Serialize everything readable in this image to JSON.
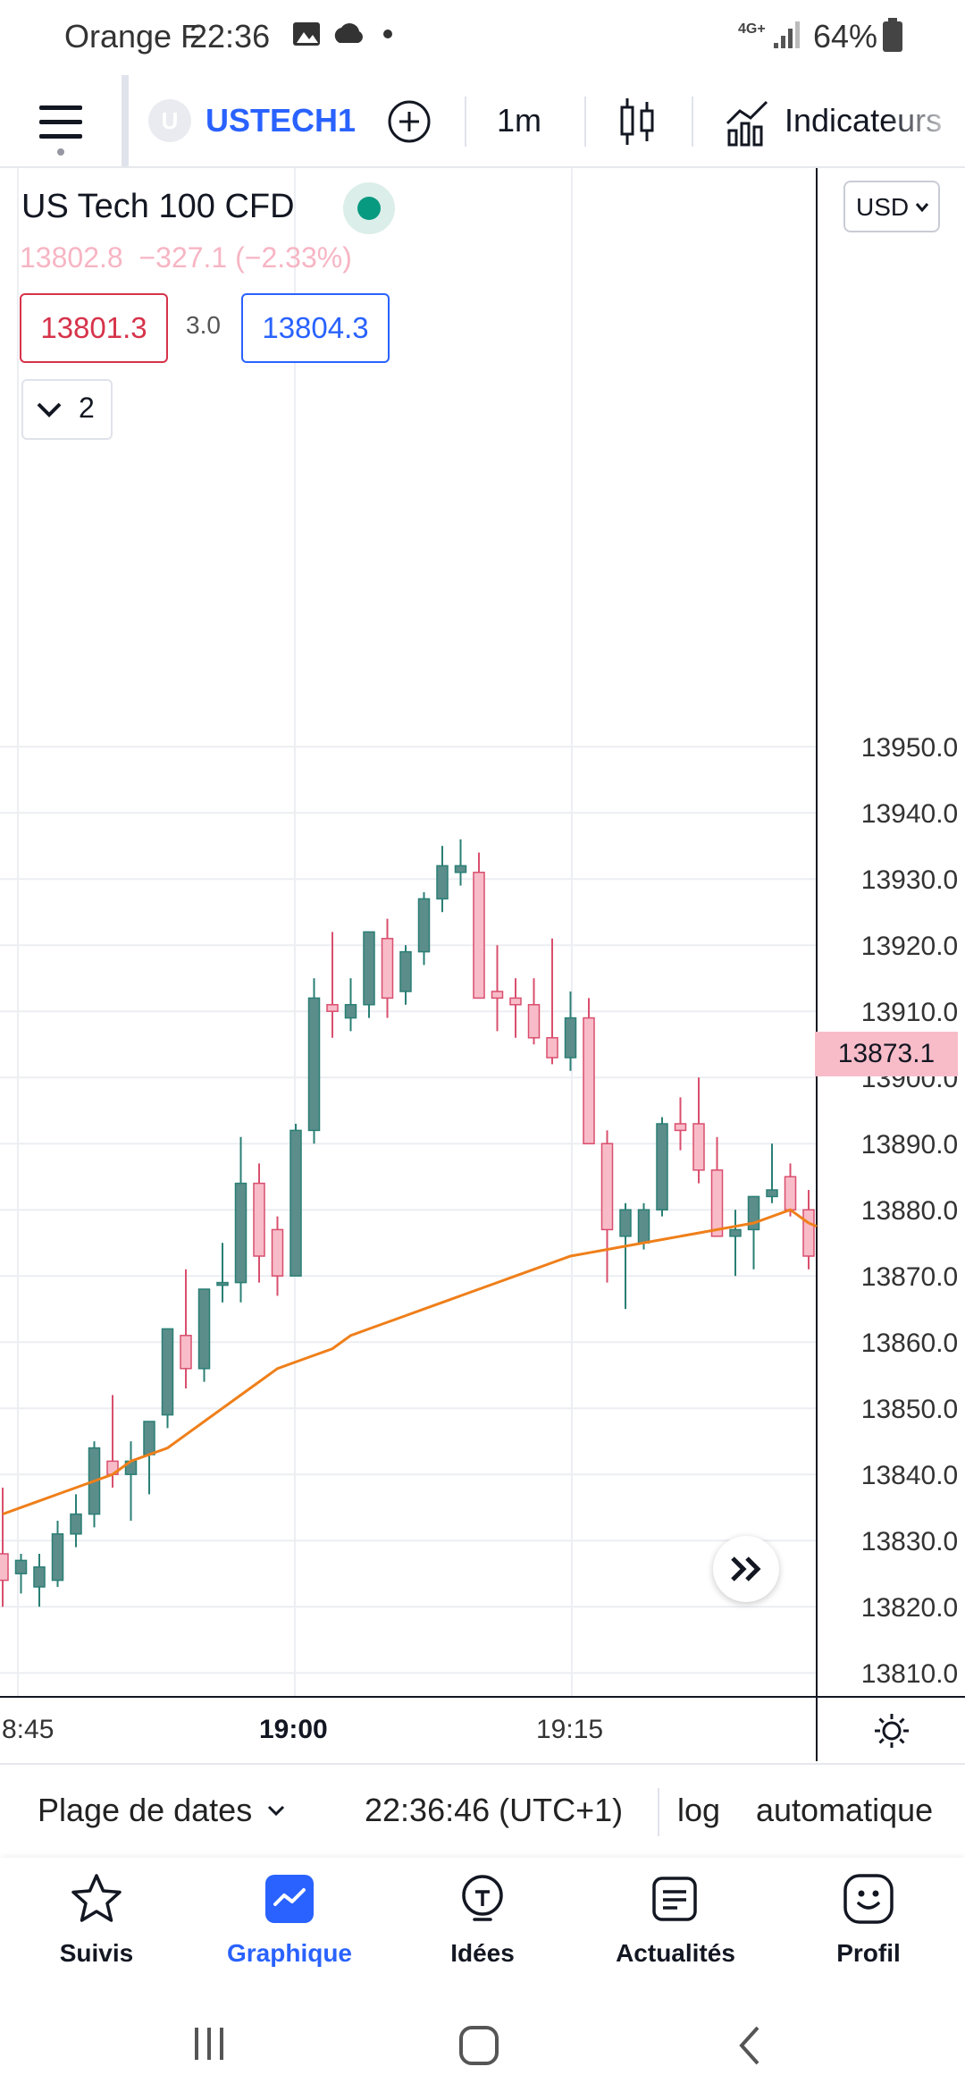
{
  "status_bar": {
    "carrier": "Orange F",
    "time": "22:36",
    "network": "4G+",
    "battery": "64%"
  },
  "toolbar": {
    "symbol_badge": "U",
    "symbol": "USTECH1",
    "interval": "1m",
    "indicators_label": "Indicateurs"
  },
  "legend": {
    "title": "US Tech 100 CFD",
    "last_change": "13802.8  −327.1 (−2.33%)",
    "bid": "13801.3",
    "spread": "3.0",
    "ask": "13804.3",
    "collapse_count": "2"
  },
  "currency_select": "USD",
  "price_tag": "13873.1",
  "time_axis": {
    "left_partial": "8:45",
    "center": "19:00",
    "right": "19:15"
  },
  "range_bar": {
    "date_range_label": "Plage de dates",
    "clock": "22:36:46 (UTC+1)",
    "log_label": "log",
    "auto_label": "automatique"
  },
  "nav": [
    {
      "label": "Suivis",
      "icon": "star-icon"
    },
    {
      "label": "Graphique",
      "icon": "chart-icon",
      "active": true
    },
    {
      "label": "Idées",
      "icon": "lightbulb-icon"
    },
    {
      "label": "Actualités",
      "icon": "news-icon"
    },
    {
      "label": "Profil",
      "icon": "smiley-icon"
    }
  ],
  "colors": {
    "accent": "#2962ff",
    "up_fill": "#5b8d8a",
    "up_border": "#2a7f75",
    "down_fill": "#f8bcc9",
    "down_border": "#d94f6e",
    "ma_line": "#ef7f1a",
    "price_tag_bg": "#f8bcc9"
  },
  "chart_data": {
    "type": "candlestick",
    "y_ticks": [
      13950,
      13940,
      13930,
      13920,
      13910,
      13900,
      13890,
      13880,
      13870,
      13860,
      13850,
      13840,
      13830,
      13820,
      13810
    ],
    "ylim": [
      13808,
      13956
    ],
    "candles": [
      [
        13828,
        13838,
        13820,
        13824
      ],
      [
        13825,
        13828,
        13822,
        13827
      ],
      [
        13823,
        13828,
        13820,
        13826
      ],
      [
        13824,
        13833,
        13823,
        13831
      ],
      [
        13831,
        13837,
        13829,
        13834
      ],
      [
        13834,
        13845,
        13832,
        13844
      ],
      [
        13842,
        13852,
        13838,
        13840
      ],
      [
        13840,
        13845,
        13833,
        13842
      ],
      [
        13843,
        13848,
        13837,
        13848
      ],
      [
        13849,
        13862,
        13847,
        13862
      ],
      [
        13861,
        13871,
        13853,
        13856
      ],
      [
        13856,
        13868,
        13854,
        13868
      ],
      [
        13869,
        13875,
        13866,
        13869
      ],
      [
        13869,
        13891,
        13866,
        13884
      ],
      [
        13884,
        13887,
        13869,
        13873
      ],
      [
        13877,
        13879,
        13867,
        13870
      ],
      [
        13870,
        13893,
        13870,
        13892
      ],
      [
        13892,
        13915,
        13890,
        13912
      ],
      [
        13911,
        13922,
        13906,
        13910
      ],
      [
        13909,
        13915,
        13907,
        13911
      ],
      [
        13911,
        13922,
        13909,
        13922
      ],
      [
        13921,
        13924,
        13909,
        13912
      ],
      [
        13913,
        13920,
        13911,
        13919
      ],
      [
        13919,
        13928,
        13917,
        13927
      ],
      [
        13927,
        13935,
        13925,
        13932
      ],
      [
        13931,
        13936,
        13929,
        13932
      ],
      [
        13931,
        13934,
        13912,
        13912
      ],
      [
        13913,
        13920,
        13907,
        13912
      ],
      [
        13912,
        13915,
        13906,
        13911
      ],
      [
        13911,
        13915,
        13905,
        13906
      ],
      [
        13906,
        13921,
        13902,
        13903
      ],
      [
        13903,
        13913,
        13901,
        13909
      ],
      [
        13909,
        13912,
        13890,
        13890
      ],
      [
        13890,
        13892,
        13869,
        13877
      ],
      [
        13876,
        13881,
        13865,
        13880
      ],
      [
        13875,
        13881,
        13874,
        13880
      ],
      [
        13880,
        13894,
        13879,
        13893
      ],
      [
        13893,
        13897,
        13889,
        13892
      ],
      [
        13893,
        13900,
        13884,
        13886
      ],
      [
        13886,
        13891,
        13876,
        13876
      ],
      [
        13876,
        13880,
        13870,
        13877
      ],
      [
        13877,
        13882,
        13871,
        13882
      ],
      [
        13882,
        13890,
        13881,
        13883
      ],
      [
        13885,
        13887,
        13879,
        13880
      ],
      [
        13880,
        13883,
        13871,
        13873
      ]
    ],
    "ma": [
      13834,
      13835,
      13836,
      13837,
      13838,
      13839,
      13840,
      13842,
      13843,
      13844,
      13846,
      13848,
      13850,
      13852,
      13854,
      13856,
      13857,
      13858,
      13859,
      13861,
      13862,
      13863,
      13864,
      13865,
      13866,
      13867,
      13868,
      13869,
      13870,
      13871,
      13872,
      13873,
      13873.5,
      13874,
      13874.5,
      13875,
      13875.5,
      13876,
      13876.5,
      13877,
      13877.5,
      13878,
      13879,
      13880,
      13878
    ]
  }
}
